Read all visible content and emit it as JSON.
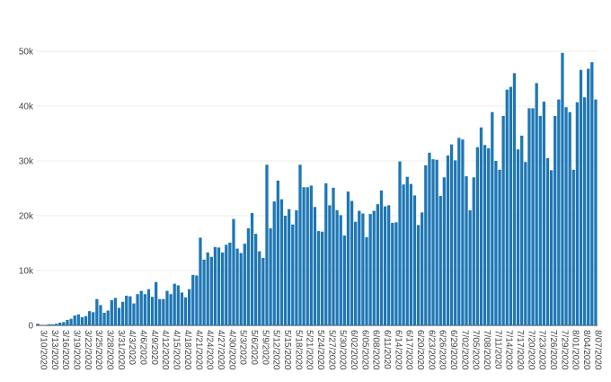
{
  "chart_data": {
    "type": "bar",
    "title": "",
    "xlabel": "",
    "ylabel": "",
    "grid": "horizontal",
    "ylim": [
      0,
      50000
    ],
    "bar_color": "#1f77b4",
    "y_ticks": [
      {
        "value": 0,
        "label": "0"
      },
      {
        "value": 10000,
        "label": "10k"
      },
      {
        "value": 20000,
        "label": "20k"
      },
      {
        "value": 30000,
        "label": "30k"
      },
      {
        "value": 40000,
        "label": "40k"
      },
      {
        "value": 50000,
        "label": "50k"
      }
    ],
    "x_tick_labels": [
      "3/10/2020",
      "3/13/2020",
      "3/16/2020",
      "3/19/2020",
      "3/22/2020",
      "3/25/2020",
      "3/28/2020",
      "3/31/2020",
      "4/3/2020",
      "4/6/2020",
      "4/9/2020",
      "4/12/2020",
      "4/15/2020",
      "4/18/2020",
      "4/21/2020",
      "4/24/2020",
      "4/27/2020",
      "4/30/2020",
      "5/3/2020",
      "5/6/2020",
      "5/9/2020",
      "5/12/2020",
      "5/15/2020",
      "5/18/2020",
      "5/21/2020",
      "5/24/2020",
      "5/27/2020",
      "5/30/2020",
      "6/02/2020",
      "6/05/2020",
      "6/08/2020",
      "6/11/2020",
      "6/14/2020",
      "6/17/2020",
      "6/20/2020",
      "6/23/2020",
      "6/26/2020",
      "6/29/2020",
      "7/02/2020",
      "7/05/2020",
      "7/08/2020",
      "7/11/2020",
      "7/14/2020",
      "7/17/2020",
      "7/20/2020",
      "7/23/2020",
      "7/26/2020",
      "7/29/2020",
      "8/01/2020",
      "8/04/2020",
      "8/07/2020"
    ],
    "values": [
      300,
      0,
      0,
      200,
      200,
      300,
      500,
      600,
      1000,
      1200,
      1800,
      2000,
      1500,
      1700,
      2600,
      2400,
      4800,
      3700,
      2300,
      2700,
      4600,
      5000,
      3200,
      4300,
      5400,
      5300,
      4000,
      5700,
      6300,
      5700,
      6600,
      5200,
      7900,
      4800,
      4800,
      6300,
      5700,
      7600,
      7300,
      6000,
      5100,
      6600,
      9200,
      9100,
      16000,
      12000,
      13300,
      12500,
      14300,
      14200,
      13300,
      14700,
      15100,
      19400,
      14000,
      13200,
      14900,
      17700,
      20500,
      16700,
      13500,
      12300,
      29300,
      17700,
      22600,
      26400,
      23000,
      20000,
      21200,
      18400,
      21000,
      29300,
      25200,
      25200,
      25500,
      21600,
      17200,
      17100,
      25900,
      21900,
      25100,
      21000,
      20100,
      16400,
      24400,
      22700,
      18900,
      20900,
      20400,
      16100,
      20300,
      20900,
      22100,
      24600,
      21700,
      21900,
      18700,
      18800,
      29900,
      25700,
      27100,
      25800,
      23700,
      18300,
      20600,
      29200,
      31500,
      30300,
      30200,
      23600,
      27000,
      31000,
      33000,
      30100,
      34200,
      33900,
      27200,
      21000,
      27000,
      32500,
      36100,
      32900,
      32300,
      38900,
      30000,
      28400,
      38200,
      43000,
      43500,
      46000,
      32100,
      34600,
      29800,
      39600,
      39600,
      44200,
      38200,
      40800,
      30500,
      28300,
      38200,
      41200,
      49700,
      39800,
      38900,
      28400,
      40700,
      46600,
      41600,
      46800,
      48000,
      41200
    ]
  }
}
